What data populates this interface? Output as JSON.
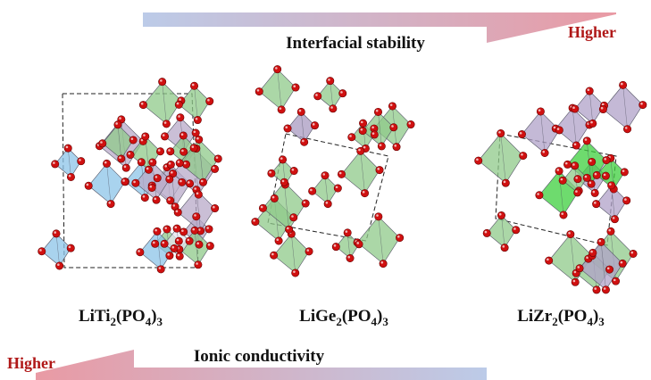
{
  "top_arrow": {
    "label": "Interfacial stability",
    "end_label": "Higher"
  },
  "bottom_arrow": {
    "label": "Ionic conductivity",
    "end_label": "Higher"
  },
  "structures": [
    {
      "formula": [
        "LiTi",
        "2",
        "(PO",
        "4",
        ")",
        "3"
      ]
    },
    {
      "formula": [
        "LiGe",
        "2",
        "(PO",
        "4",
        ")",
        "3"
      ]
    },
    {
      "formula": [
        "LiZr",
        "2",
        "(PO",
        "4",
        ")",
        "3"
      ]
    }
  ]
}
